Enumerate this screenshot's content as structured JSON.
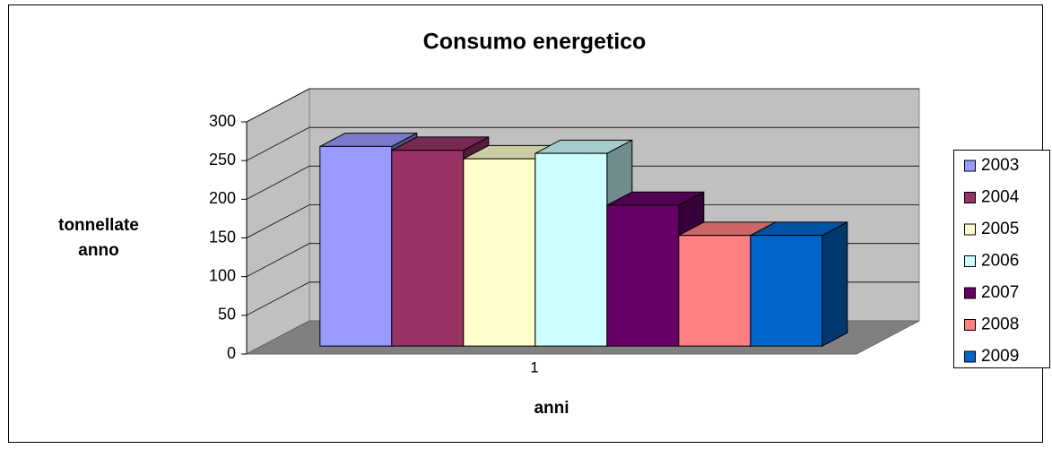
{
  "chart_data": {
    "type": "bar3d",
    "title": "Consumo energetico",
    "x_label": "anni",
    "y_label": "tonnellate anno",
    "categories": [
      "1"
    ],
    "series": [
      {
        "name": "2003",
        "color": "#9999ff",
        "values": [
          258
        ]
      },
      {
        "name": "2004",
        "color": "#993366",
        "values": [
          253
        ]
      },
      {
        "name": "2005",
        "color": "#ffffcc",
        "values": [
          242
        ]
      },
      {
        "name": "2006",
        "color": "#ccffff",
        "values": [
          249
        ]
      },
      {
        "name": "2007",
        "color": "#660066",
        "values": [
          182
        ]
      },
      {
        "name": "2008",
        "color": "#ff8080",
        "values": [
          143
        ]
      },
      {
        "name": "2009",
        "color": "#0066cc",
        "values": [
          143
        ]
      }
    ],
    "ylim": [
      0,
      300
    ],
    "yticks": [
      0,
      50,
      100,
      150,
      200,
      250,
      300
    ],
    "grid": true,
    "legend": "right"
  }
}
